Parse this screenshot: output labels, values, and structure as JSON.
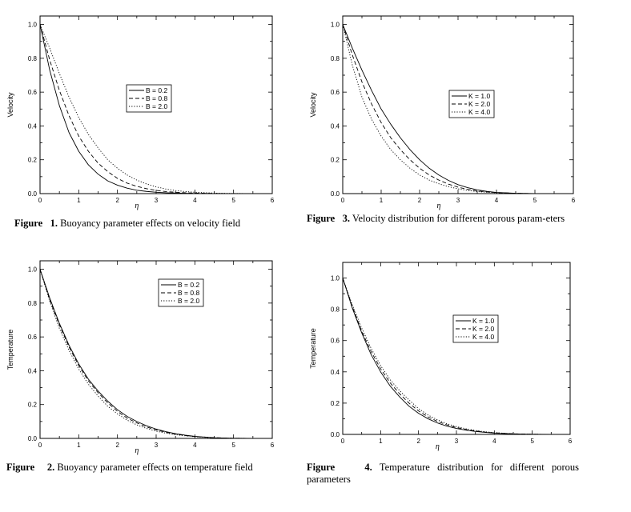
{
  "chart_data": [
    {
      "type": "line",
      "title": "",
      "xlabel": "η",
      "ylabel": "Velocity",
      "xlim": [
        0,
        6
      ],
      "ylim": [
        0,
        1.05
      ],
      "xticks": [
        "0",
        "1",
        "2",
        "3",
        "4",
        "5",
        "6"
      ],
      "yticks": [
        "0.0",
        "0.2",
        "0.4",
        "0.6",
        "0.8",
        "1.0"
      ],
      "legend_position": "center",
      "x": [
        0,
        0.25,
        0.5,
        0.75,
        1.0,
        1.25,
        1.5,
        1.75,
        2.0,
        2.25,
        2.5,
        2.75,
        3.0,
        3.25,
        3.5,
        3.75,
        4.0,
        4.5,
        5.0,
        5.5,
        6.0
      ],
      "series": [
        {
          "name": "B = 0.2",
          "style": "solid",
          "values": [
            1.0,
            0.73,
            0.52,
            0.36,
            0.25,
            0.17,
            0.115,
            0.075,
            0.05,
            0.032,
            0.02,
            0.013,
            0.008,
            0.005,
            0.003,
            0.002,
            0.001,
            0.0,
            0.0,
            0.0,
            0.0
          ]
        },
        {
          "name": "B = 0.8",
          "style": "dashed",
          "values": [
            1.0,
            0.79,
            0.61,
            0.46,
            0.34,
            0.25,
            0.18,
            0.13,
            0.09,
            0.062,
            0.043,
            0.029,
            0.019,
            0.012,
            0.008,
            0.005,
            0.003,
            0.001,
            0.0,
            0.0,
            0.0
          ]
        },
        {
          "name": "B = 2.0",
          "style": "dotted",
          "values": [
            1.0,
            0.86,
            0.71,
            0.57,
            0.45,
            0.35,
            0.27,
            0.2,
            0.15,
            0.11,
            0.08,
            0.057,
            0.04,
            0.027,
            0.018,
            0.012,
            0.008,
            0.003,
            0.001,
            0.0,
            0.0
          ]
        }
      ]
    },
    {
      "type": "line",
      "title": "",
      "xlabel": "η",
      "ylabel": "Velocity",
      "xlim": [
        0,
        6
      ],
      "ylim": [
        0,
        1.05
      ],
      "xticks": [
        "0",
        "1",
        "2",
        "3",
        "4",
        "5",
        "6"
      ],
      "yticks": [
        "0.0",
        "0.2",
        "0.4",
        "0.6",
        "0.8",
        "1.0"
      ],
      "legend_position": "center-right",
      "x": [
        0,
        0.25,
        0.5,
        0.75,
        1.0,
        1.25,
        1.5,
        1.75,
        2.0,
        2.25,
        2.5,
        2.75,
        3.0,
        3.25,
        3.5,
        3.75,
        4.0,
        4.5,
        5.0,
        5.5,
        6.0
      ],
      "series": [
        {
          "name": "K = 1.0",
          "style": "solid",
          "values": [
            1.0,
            0.86,
            0.73,
            0.61,
            0.5,
            0.41,
            0.33,
            0.26,
            0.2,
            0.15,
            0.11,
            0.078,
            0.053,
            0.035,
            0.022,
            0.013,
            0.007,
            0.002,
            0.0,
            0.0,
            0.0
          ]
        },
        {
          "name": "K = 2.0",
          "style": "dashed",
          "values": [
            1.0,
            0.82,
            0.66,
            0.53,
            0.42,
            0.33,
            0.26,
            0.2,
            0.15,
            0.11,
            0.08,
            0.056,
            0.038,
            0.025,
            0.016,
            0.01,
            0.006,
            0.002,
            0.0,
            0.0,
            0.0
          ]
        },
        {
          "name": "K = 4.0",
          "style": "dotted",
          "values": [
            1.0,
            0.76,
            0.57,
            0.44,
            0.34,
            0.26,
            0.2,
            0.15,
            0.11,
            0.08,
            0.058,
            0.041,
            0.028,
            0.019,
            0.012,
            0.008,
            0.005,
            0.001,
            0.0,
            0.0,
            0.0
          ]
        }
      ]
    },
    {
      "type": "line",
      "title": "",
      "xlabel": "η",
      "ylabel": "Temperature",
      "xlim": [
        0,
        6
      ],
      "ylim": [
        0,
        1.05
      ],
      "xticks": [
        "0",
        "1",
        "2",
        "3",
        "4",
        "5",
        "6"
      ],
      "yticks": [
        "0.0",
        "0.2",
        "0.4",
        "0.6",
        "0.8",
        "1.0"
      ],
      "legend_position": "top-right",
      "x": [
        0,
        0.25,
        0.5,
        0.75,
        1.0,
        1.25,
        1.5,
        1.75,
        2.0,
        2.25,
        2.5,
        2.75,
        3.0,
        3.25,
        3.5,
        3.75,
        4.0,
        4.5,
        5.0,
        5.5,
        6.0
      ],
      "series": [
        {
          "name": "B = 0.2",
          "style": "solid",
          "values": [
            1.0,
            0.83,
            0.68,
            0.55,
            0.44,
            0.35,
            0.28,
            0.22,
            0.17,
            0.13,
            0.1,
            0.075,
            0.055,
            0.04,
            0.028,
            0.019,
            0.012,
            0.004,
            0.001,
            0.0,
            0.0
          ]
        },
        {
          "name": "B = 0.8",
          "style": "dashed",
          "values": [
            1.0,
            0.82,
            0.67,
            0.54,
            0.43,
            0.34,
            0.27,
            0.21,
            0.16,
            0.12,
            0.092,
            0.068,
            0.05,
            0.036,
            0.025,
            0.017,
            0.011,
            0.004,
            0.001,
            0.0,
            0.0
          ]
        },
        {
          "name": "B = 2.0",
          "style": "dotted",
          "values": [
            1.0,
            0.81,
            0.65,
            0.52,
            0.41,
            0.32,
            0.25,
            0.19,
            0.145,
            0.108,
            0.08,
            0.059,
            0.043,
            0.031,
            0.022,
            0.015,
            0.01,
            0.003,
            0.001,
            0.0,
            0.0
          ]
        }
      ]
    },
    {
      "type": "line",
      "title": "",
      "xlabel": "η",
      "ylabel": "Temperature",
      "xlim": [
        0,
        6
      ],
      "ylim": [
        0,
        1.1
      ],
      "xticks": [
        "0",
        "1",
        "2",
        "3",
        "4",
        "5",
        "6"
      ],
      "yticks": [
        "0.0",
        "0.2",
        "0.4",
        "0.6",
        "0.8",
        "1.0"
      ],
      "legend_position": "center-right",
      "x": [
        0,
        0.25,
        0.5,
        0.75,
        1.0,
        1.25,
        1.5,
        1.75,
        2.0,
        2.25,
        2.5,
        2.75,
        3.0,
        3.25,
        3.5,
        3.75,
        4.0,
        4.5,
        5.0,
        5.5,
        6.0
      ],
      "series": [
        {
          "name": "K = 1.0",
          "style": "solid",
          "values": [
            1.0,
            0.81,
            0.65,
            0.51,
            0.4,
            0.31,
            0.24,
            0.18,
            0.135,
            0.1,
            0.073,
            0.053,
            0.038,
            0.027,
            0.019,
            0.013,
            0.008,
            0.003,
            0.001,
            0.0,
            0.0
          ]
        },
        {
          "name": "K = 2.0",
          "style": "dashed",
          "values": [
            1.0,
            0.82,
            0.66,
            0.53,
            0.42,
            0.33,
            0.26,
            0.2,
            0.15,
            0.112,
            0.083,
            0.061,
            0.044,
            0.031,
            0.022,
            0.015,
            0.01,
            0.004,
            0.001,
            0.0,
            0.0
          ]
        },
        {
          "name": "K = 4.0",
          "style": "dotted",
          "values": [
            1.0,
            0.83,
            0.68,
            0.55,
            0.44,
            0.35,
            0.28,
            0.22,
            0.165,
            0.124,
            0.093,
            0.068,
            0.05,
            0.036,
            0.025,
            0.017,
            0.011,
            0.004,
            0.001,
            0.0,
            0.0
          ]
        }
      ]
    }
  ],
  "captions": [
    {
      "label": "Figure",
      "number": "1.",
      "text": "Buoyancy parameter effects on velocity field"
    },
    {
      "label": "Figure",
      "number": "3.",
      "text": "Velocity distribution for different porous param-eters"
    },
    {
      "label": "Figure",
      "number": "2.",
      "text": "Buoyancy parameter effects on temperature field"
    },
    {
      "label": "Figure",
      "number": "4.",
      "text": "Temperature distribution for different porous parameters"
    }
  ]
}
